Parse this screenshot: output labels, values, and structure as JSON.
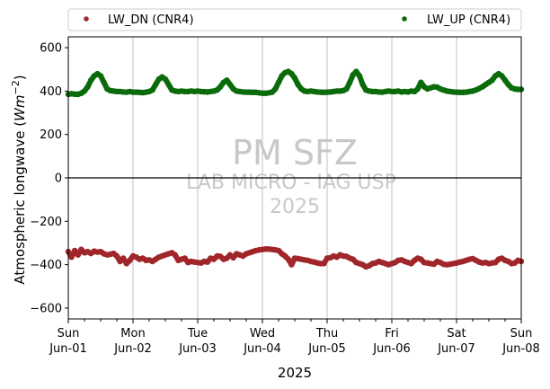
{
  "chart_data": {
    "type": "scatter",
    "title": "",
    "ylabel": "Atmospheric longwave (Wm⁻²)",
    "ylabel_plain": "Atmospheric longwave (",
    "ylabel_unit": "Wm",
    "ylabel_exp": "−2",
    "ylabel_close": ")",
    "xlabel": "2025",
    "ylim": [
      -650,
      650
    ],
    "yticks": [
      -600,
      -400,
      -200,
      0,
      200,
      400,
      600
    ],
    "xlim": [
      0,
      7
    ],
    "xticks": [
      {
        "pos": 0,
        "line1": "Sun",
        "line2": "Jun-01"
      },
      {
        "pos": 1,
        "line1": "Mon",
        "line2": "Jun-02"
      },
      {
        "pos": 2,
        "line1": "Tue",
        "line2": "Jun-03"
      },
      {
        "pos": 3,
        "line1": "Wed",
        "line2": "Jun-04"
      },
      {
        "pos": 4,
        "line1": "Thu",
        "line2": "Jun-05"
      },
      {
        "pos": 5,
        "line1": "Fri",
        "line2": "Jun-06"
      },
      {
        "pos": 6,
        "line1": "Sat",
        "line2": "Jun-07"
      },
      {
        "pos": 7,
        "line1": "Sun",
        "line2": "Jun-08"
      }
    ],
    "grid": "vertical",
    "zero_line": true,
    "legend_position": "top",
    "watermark": {
      "line1": "PM SFZ",
      "line2": "LAB MICRO - IAG USP",
      "line3": "2025"
    },
    "series": [
      {
        "name": "LW_DN (CNR4)",
        "color": "#a0262a",
        "x": [
          0.0,
          0.05,
          0.1,
          0.15,
          0.2,
          0.25,
          0.3,
          0.35,
          0.4,
          0.45,
          0.5,
          0.55,
          0.6,
          0.65,
          0.7,
          0.75,
          0.8,
          0.85,
          0.9,
          0.95,
          1.0,
          1.05,
          1.1,
          1.15,
          1.2,
          1.25,
          1.3,
          1.35,
          1.4,
          1.45,
          1.5,
          1.55,
          1.6,
          1.65,
          1.7,
          1.75,
          1.8,
          1.85,
          1.9,
          1.95,
          2.0,
          2.05,
          2.1,
          2.15,
          2.2,
          2.25,
          2.3,
          2.35,
          2.4,
          2.45,
          2.5,
          2.55,
          2.6,
          2.65,
          2.7,
          2.75,
          2.8,
          2.85,
          2.9,
          2.95,
          3.0,
          3.05,
          3.1,
          3.15,
          3.2,
          3.25,
          3.3,
          3.35,
          3.4,
          3.45,
          3.5,
          3.55,
          3.6,
          3.65,
          3.7,
          3.75,
          3.8,
          3.85,
          3.9,
          3.95,
          4.0,
          4.05,
          4.1,
          4.15,
          4.2,
          4.25,
          4.3,
          4.35,
          4.4,
          4.45,
          4.5,
          4.55,
          4.6,
          4.65,
          4.7,
          4.75,
          4.8,
          4.85,
          4.9,
          4.95,
          5.0,
          5.05,
          5.1,
          5.15,
          5.2,
          5.25,
          5.3,
          5.35,
          5.4,
          5.45,
          5.5,
          5.55,
          5.6,
          5.65,
          5.7,
          5.75,
          5.8,
          5.85,
          5.9,
          5.95,
          6.0,
          6.05,
          6.1,
          6.15,
          6.2,
          6.25,
          6.3,
          6.35,
          6.4,
          6.45,
          6.5,
          6.55,
          6.6,
          6.65,
          6.7,
          6.75,
          6.8,
          6.85,
          6.9,
          6.95,
          7.0
        ],
        "y": [
          -340,
          -365,
          -335,
          -355,
          -330,
          -345,
          -340,
          -348,
          -338,
          -342,
          -340,
          -350,
          -355,
          -352,
          -348,
          -360,
          -385,
          -370,
          -395,
          -380,
          -360,
          -365,
          -375,
          -370,
          -380,
          -378,
          -385,
          -375,
          -365,
          -360,
          -355,
          -350,
          -345,
          -355,
          -380,
          -375,
          -370,
          -390,
          -385,
          -388,
          -390,
          -392,
          -385,
          -388,
          -370,
          -375,
          -360,
          -362,
          -375,
          -370,
          -355,
          -368,
          -350,
          -355,
          -360,
          -350,
          -345,
          -340,
          -335,
          -332,
          -330,
          -328,
          -328,
          -330,
          -332,
          -335,
          -350,
          -360,
          -375,
          -400,
          -370,
          -372,
          -375,
          -378,
          -380,
          -385,
          -388,
          -392,
          -395,
          -395,
          -370,
          -368,
          -360,
          -365,
          -355,
          -360,
          -362,
          -370,
          -375,
          -390,
          -395,
          -400,
          -410,
          -405,
          -395,
          -392,
          -385,
          -390,
          -395,
          -400,
          -395,
          -390,
          -380,
          -378,
          -385,
          -390,
          -395,
          -380,
          -370,
          -375,
          -390,
          -392,
          -395,
          -398,
          -385,
          -390,
          -398,
          -400,
          -398,
          -395,
          -392,
          -388,
          -385,
          -380,
          -375,
          -372,
          -380,
          -388,
          -392,
          -390,
          -395,
          -392,
          -390,
          -375,
          -370,
          -380,
          -385,
          -395,
          -392,
          -380,
          -385
        ]
      },
      {
        "name": "LW_UP (CNR4)",
        "color": "#0a6b0a",
        "x": [
          0.0,
          0.05,
          0.1,
          0.15,
          0.2,
          0.25,
          0.3,
          0.35,
          0.4,
          0.45,
          0.5,
          0.55,
          0.6,
          0.65,
          0.7,
          0.75,
          0.8,
          0.85,
          0.9,
          0.95,
          1.0,
          1.05,
          1.1,
          1.15,
          1.2,
          1.25,
          1.3,
          1.35,
          1.4,
          1.45,
          1.5,
          1.55,
          1.6,
          1.65,
          1.7,
          1.75,
          1.8,
          1.85,
          1.9,
          1.95,
          2.0,
          2.05,
          2.1,
          2.15,
          2.2,
          2.25,
          2.3,
          2.35,
          2.4,
          2.45,
          2.5,
          2.55,
          2.6,
          2.65,
          2.7,
          2.75,
          2.8,
          2.85,
          2.9,
          2.95,
          3.0,
          3.05,
          3.1,
          3.15,
          3.2,
          3.25,
          3.3,
          3.35,
          3.4,
          3.45,
          3.5,
          3.55,
          3.6,
          3.65,
          3.7,
          3.75,
          3.8,
          3.85,
          3.9,
          3.95,
          4.0,
          4.05,
          4.1,
          4.15,
          4.2,
          4.25,
          4.3,
          4.35,
          4.4,
          4.45,
          4.5,
          4.55,
          4.6,
          4.65,
          4.7,
          4.75,
          4.8,
          4.85,
          4.9,
          4.95,
          5.0,
          5.05,
          5.1,
          5.15,
          5.2,
          5.25,
          5.3,
          5.35,
          5.4,
          5.45,
          5.5,
          5.55,
          5.6,
          5.65,
          5.7,
          5.75,
          5.8,
          5.85,
          5.9,
          5.95,
          6.0,
          6.05,
          6.1,
          6.15,
          6.2,
          6.25,
          6.3,
          6.35,
          6.4,
          6.45,
          6.5,
          6.55,
          6.6,
          6.65,
          6.7,
          6.75,
          6.8,
          6.85,
          6.9,
          6.95,
          7.0
        ],
        "y": [
          385,
          388,
          386,
          385,
          390,
          400,
          420,
          450,
          470,
          480,
          470,
          440,
          410,
          402,
          400,
          398,
          398,
          396,
          395,
          398,
          395,
          395,
          394,
          393,
          395,
          398,
          405,
          430,
          455,
          465,
          455,
          430,
          405,
          400,
          398,
          400,
          398,
          398,
          400,
          398,
          400,
          398,
          397,
          396,
          398,
          400,
          405,
          420,
          440,
          450,
          430,
          410,
          400,
          398,
          396,
          395,
          395,
          394,
          394,
          392,
          390,
          390,
          392,
          395,
          410,
          440,
          470,
          485,
          490,
          480,
          460,
          430,
          410,
          400,
          398,
          400,
          398,
          396,
          395,
          394,
          395,
          396,
          398,
          400,
          400,
          402,
          410,
          440,
          475,
          490,
          470,
          430,
          405,
          400,
          398,
          398,
          396,
          395,
          398,
          400,
          398,
          398,
          400,
          396,
          398,
          396,
          400,
          398,
          410,
          440,
          420,
          410,
          415,
          420,
          418,
          410,
          405,
          400,
          398,
          396,
          395,
          394,
          394,
          395,
          398,
          400,
          405,
          412,
          420,
          430,
          440,
          450,
          470,
          480,
          470,
          450,
          430,
          415,
          410,
          408,
          408
        ]
      }
    ]
  }
}
